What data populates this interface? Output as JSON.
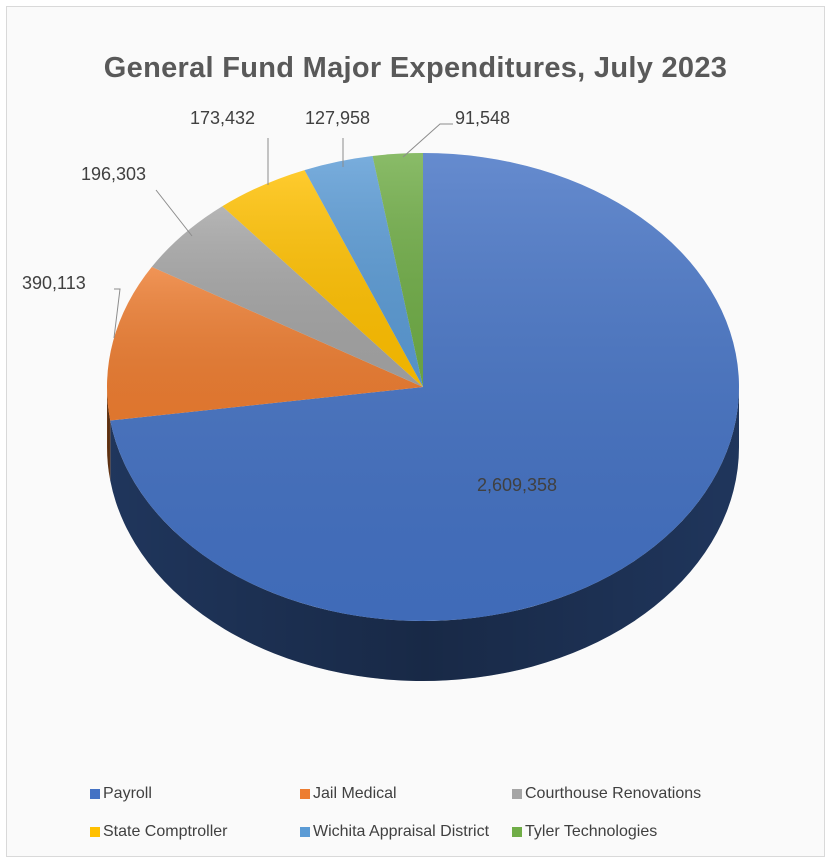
{
  "chart_data": {
    "type": "pie",
    "title": "General Fund Major Expenditures, July 2023",
    "categories": [
      "Payroll",
      "Jail Medical",
      "Courthouse Renovations",
      "State Comptroller",
      "Wichita Appraisal District",
      "Tyler Technologies"
    ],
    "values": [
      2609358,
      390113,
      196303,
      173432,
      127958,
      91548
    ],
    "data_labels": [
      "2,609,358",
      "390,113",
      "196,303",
      "173,432",
      "127,958",
      "91,548"
    ],
    "colors": [
      "#4472c4",
      "#ed7d31",
      "#a5a5a5",
      "#ffc000",
      "#5b9bd5",
      "#70ad47"
    ],
    "style": "3d-pie",
    "legend_position": "bottom"
  }
}
